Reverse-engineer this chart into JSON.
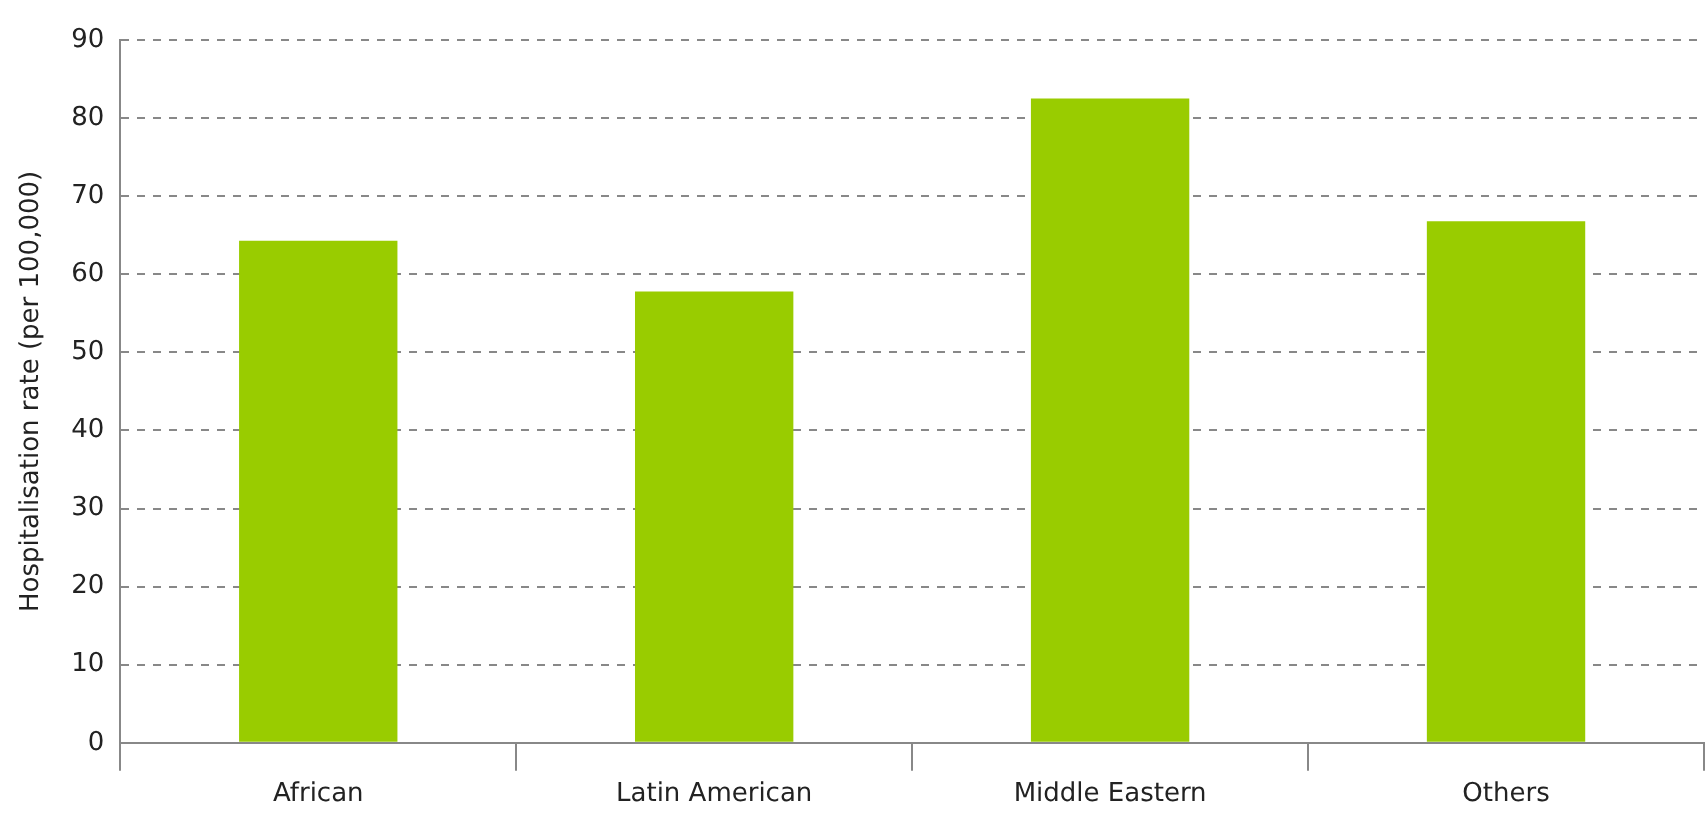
{
  "chart_data": {
    "type": "bar",
    "ylabel": "Hospitalisation rate (per 100,000)",
    "categories": [
      "African",
      "Latin American",
      "Middle Eastern",
      "Others"
    ],
    "values": [
      64.3,
      57.8,
      82.5,
      66.8
    ],
    "color": "#99cc00",
    "ylim": [
      0,
      90
    ],
    "yticks": [
      0,
      10,
      20,
      30,
      40,
      50,
      60,
      70,
      80,
      90
    ],
    "grid": "y",
    "legend": false
  }
}
